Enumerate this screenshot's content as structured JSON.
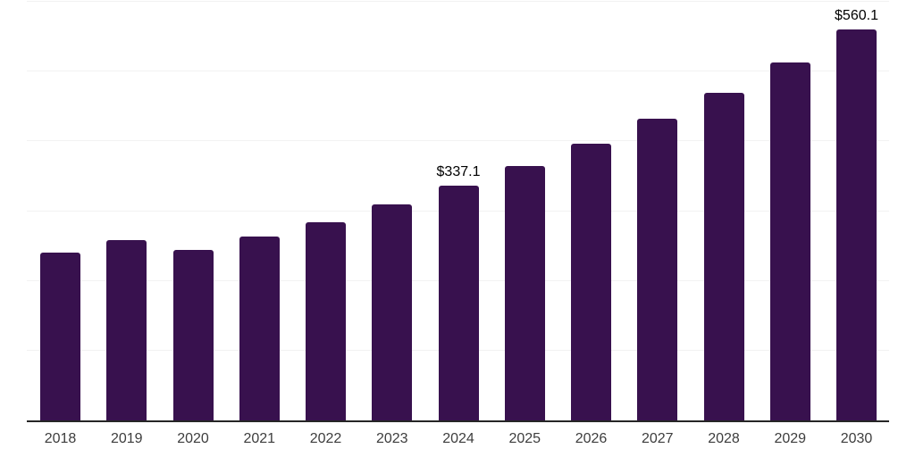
{
  "chart_data": {
    "type": "bar",
    "title": "",
    "xlabel": "",
    "ylabel": "",
    "categories": [
      "2018",
      "2019",
      "2020",
      "2021",
      "2022",
      "2023",
      "2024",
      "2025",
      "2026",
      "2027",
      "2028",
      "2029",
      "2030"
    ],
    "values": [
      240,
      259,
      245,
      264,
      284,
      310,
      337.1,
      365,
      397,
      432,
      470,
      513,
      560.1
    ],
    "value_labels": {
      "2024": "$337.1",
      "2030": "$560.1"
    },
    "ylim": [
      0,
      600
    ],
    "gridline_values": [
      100,
      200,
      300,
      400,
      500,
      600
    ],
    "grid": "horizontal",
    "legend_position": "none",
    "bar_color": "#38114E",
    "gridline_color": "#f2f2f2",
    "axis_line_color": "#262626",
    "tick_label_color": "#3d3d3d",
    "value_label_color": "#000000",
    "background_color": "#ffffff"
  }
}
